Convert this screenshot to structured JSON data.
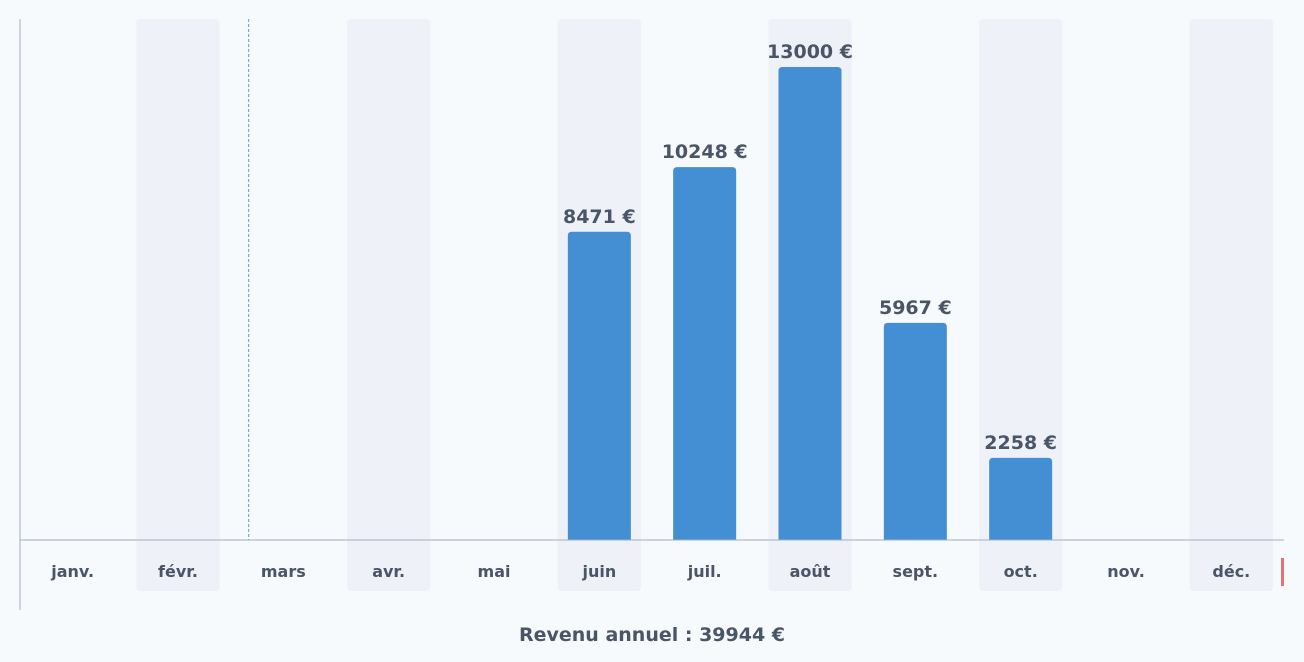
{
  "chart_data": {
    "type": "bar",
    "categories": [
      "janv.",
      "févr.",
      "mars",
      "avr.",
      "mai",
      "juin",
      "juil.",
      "août",
      "sept.",
      "oct.",
      "nov.",
      "déc."
    ],
    "values": [
      0,
      0,
      0,
      0,
      0,
      8471,
      10248,
      13000,
      5967,
      2258,
      0,
      0
    ],
    "value_labels": [
      "",
      "",
      "",
      "",
      "",
      "8471 €",
      "10248 €",
      "13000 €",
      "5967 €",
      "2258 €",
      "",
      ""
    ],
    "ylim": [
      0,
      13000
    ],
    "grid": false,
    "bar_color": "#448ed4",
    "band_color": "#eef1f7",
    "axis_color": "#a0aec0",
    "marker_color": "#e57373",
    "dashed_marker_after": "févr.",
    "highlight_marker_after": "déc."
  },
  "footer": {
    "annual_total": "Revenu annuel : 39944 €"
  }
}
